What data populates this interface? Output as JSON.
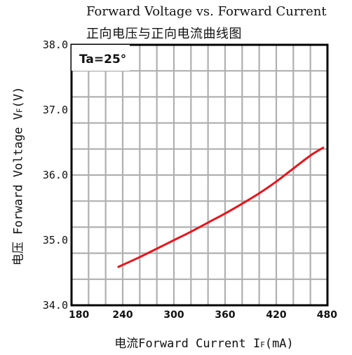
{
  "chart_data": {
    "type": "line",
    "title": "Forward Voltage vs. Forward Current",
    "subtitle": "正向电压与正向电流曲线图",
    "xlabel": "电流Forward Current I",
    "xlabel_sub": "F",
    "xlabel_unit": "(mA)",
    "ylabel": "电压 Forward Voltage V",
    "ylabel_sub": "F",
    "ylabel_unit": "(V)",
    "annotation": "Ta=25°",
    "xlim": [
      180,
      480
    ],
    "ylim": [
      34.0,
      38.0
    ],
    "x_ticks": [
      180,
      240,
      300,
      360,
      420,
      480
    ],
    "x_tick_labels": [
      "180",
      "240",
      "300",
      "360",
      "420",
      "480"
    ],
    "y_ticks": [
      34.0,
      35.0,
      36.0,
      37.0,
      38.0
    ],
    "y_tick_labels": [
      "34.0",
      "35.0",
      "36.0",
      "37.0",
      "38.0"
    ],
    "grid": true,
    "line_color": "#e8141c",
    "series": [
      {
        "x": [
          235,
          260,
          280,
          300,
          320,
          340,
          360,
          380,
          400,
          420,
          440,
          460,
          475
        ],
        "values": [
          34.59,
          34.74,
          34.87,
          35.0,
          35.13,
          35.27,
          35.41,
          35.56,
          35.72,
          35.9,
          36.1,
          36.3,
          36.42
        ]
      }
    ]
  }
}
